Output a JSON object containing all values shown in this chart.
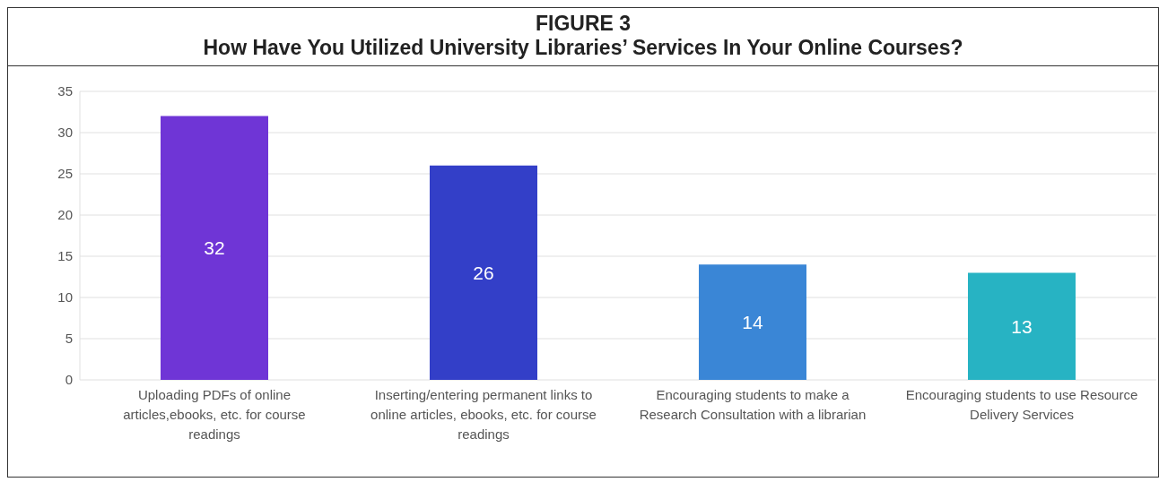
{
  "chart_data": {
    "type": "bar",
    "title": "FIGURE 3",
    "subtitle": "How Have You Utilized University Libraries’ Services In Your Online Courses?",
    "categories": [
      "Uploading PDFs of online articles,ebooks, etc. for course readings",
      "Inserting/entering permanent links to online articles, ebooks, etc. for course readings",
      "Encouraging students to make a Research Consultation with a librarian",
      "Encouraging students to use Resource Delivery Services"
    ],
    "values": [
      32,
      26,
      14,
      13
    ],
    "colors": [
      "#6f35d6",
      "#333fc8",
      "#3a86d6",
      "#27b3c3"
    ],
    "ylim": [
      0,
      35
    ],
    "yticks": [
      0,
      5,
      10,
      15,
      20,
      25,
      30,
      35
    ],
    "grid": "y",
    "data_labels": true
  }
}
